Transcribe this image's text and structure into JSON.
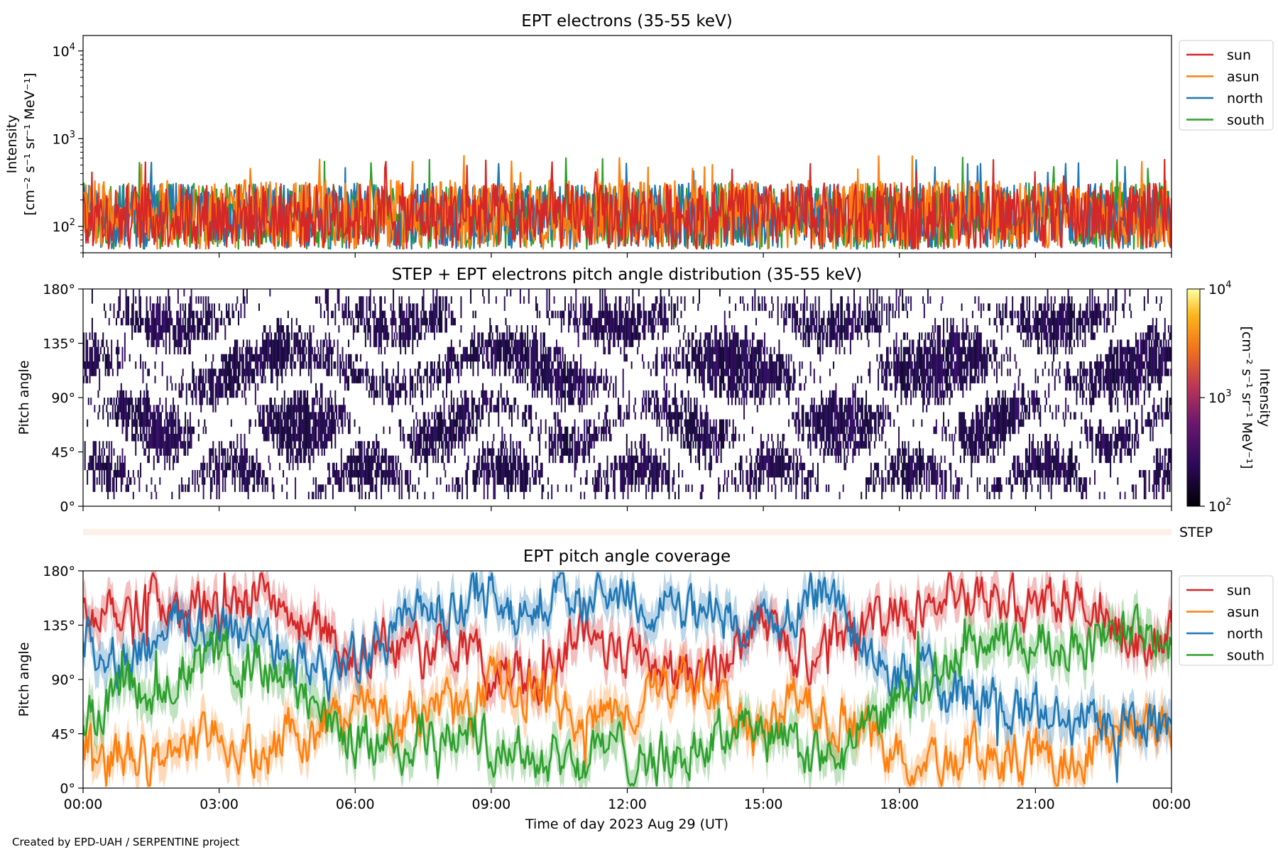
{
  "figure": {
    "footer": "Created by EPD-UAH / SERPENTINE project",
    "xlabel": "Time of day 2023 Aug 29 (UT)",
    "xticks": [
      "00:00",
      "03:00",
      "06:00",
      "09:00",
      "12:00",
      "15:00",
      "18:00",
      "21:00",
      "00:00"
    ]
  },
  "chart_data": [
    {
      "type": "line",
      "title": "EPT electrons (35-55 keV)",
      "ylabel": [
        "Intensity",
        "[cm⁻² s⁻¹ sr⁻¹ MeV⁻¹]"
      ],
      "yscale": "log",
      "ylim": [
        50,
        15000
      ],
      "yticks": [
        {
          "base": "10",
          "exp": "2",
          "value": 100
        },
        {
          "base": "10",
          "exp": "3",
          "value": 1000
        },
        {
          "base": "10",
          "exp": "4",
          "value": 10000
        }
      ],
      "x": "00:00 to 24:00 UT, 2023-08-29 (noisy high-cadence series)",
      "typical_range": [
        50,
        400
      ],
      "legend_position": "upper right outside",
      "series": [
        {
          "name": "sun",
          "color": "#d62728",
          "mean": 120,
          "max": 580
        },
        {
          "name": "asun",
          "color": "#ff7f0e",
          "mean": 130,
          "max": 650
        },
        {
          "name": "north",
          "color": "#1f77b4",
          "mean": 120,
          "max": 600
        },
        {
          "name": "south",
          "color": "#2ca02c",
          "mean": 120,
          "max": 730
        }
      ],
      "draw_order": [
        "south",
        "north",
        "asun",
        "sun"
      ]
    },
    {
      "type": "heatmap",
      "title": "STEP + EPT electrons pitch angle distribution (35-55 keV)",
      "ylabel": "Pitch angle",
      "ylim": [
        0,
        180
      ],
      "yticks": [
        "0°",
        "45°",
        "90°",
        "135°",
        "180°"
      ],
      "colorbar": {
        "label": [
          "Intensity",
          "[cm⁻² s⁻¹ sr⁻¹ MeV⁻¹]"
        ],
        "scale": "log",
        "range": [
          100,
          10000
        ],
        "ticks": [
          {
            "base": "10",
            "exp": "2"
          },
          {
            "base": "10",
            "exp": "3"
          },
          {
            "base": "10",
            "exp": "4"
          }
        ],
        "colormap": "inferno"
      },
      "dominant_value": "~1e2 (dark purple) with gaps",
      "step_label": "STEP"
    },
    {
      "type": "line",
      "title": "EPT pitch angle coverage",
      "ylabel": "Pitch angle",
      "ylim": [
        0,
        180
      ],
      "yticks": [
        "0°",
        "45°",
        "90°",
        "135°",
        "180°"
      ],
      "legend_position": "upper right outside",
      "hours_axis": [
        0,
        3,
        6,
        9,
        12,
        15,
        18,
        21,
        24
      ],
      "series": [
        {
          "name": "sun",
          "color": "#d62728",
          "keys": [
            [
              0,
              140
            ],
            [
              0.5,
              160
            ],
            [
              1,
              150
            ],
            [
              1.5,
              165
            ],
            [
              2,
              140
            ],
            [
              2.5,
              150
            ],
            [
              3,
              130
            ],
            [
              3.5,
              150
            ],
            [
              4,
              160
            ],
            [
              4.5,
              135
            ],
            [
              5,
              140
            ],
            [
              5.5,
              120
            ],
            [
              6,
              110
            ],
            [
              6.5,
              120
            ],
            [
              7,
              125
            ],
            [
              7.5,
              110
            ],
            [
              8,
              120
            ],
            [
              8.5,
              110
            ],
            [
              9,
              95
            ],
            [
              9.5,
              100
            ],
            [
              10,
              90
            ],
            [
              10.5,
              110
            ],
            [
              11,
              130
            ],
            [
              11.5,
              120
            ],
            [
              12,
              115
            ],
            [
              12.5,
              105
            ],
            [
              13,
              95
            ],
            [
              13.5,
              90
            ],
            [
              14,
              105
            ],
            [
              14.5,
              125
            ],
            [
              15,
              140
            ],
            [
              15.5,
              115
            ],
            [
              16,
              110
            ],
            [
              16.5,
              125
            ],
            [
              17,
              120
            ],
            [
              17.5,
              140
            ],
            [
              18,
              155
            ],
            [
              18.5,
              150
            ],
            [
              19,
              160
            ],
            [
              19.5,
              150
            ],
            [
              20,
              155
            ],
            [
              20.5,
              155
            ],
            [
              21,
              150
            ],
            [
              21.5,
              160
            ],
            [
              22,
              150
            ],
            [
              22.5,
              130
            ],
            [
              23,
              130
            ],
            [
              23.5,
              120
            ],
            [
              24,
              135
            ]
          ]
        },
        {
          "name": "asun",
          "color": "#ff7f0e",
          "keys": [
            [
              0,
              40
            ],
            [
              0.5,
              20
            ],
            [
              1,
              30
            ],
            [
              1.5,
              15
            ],
            [
              2,
              40
            ],
            [
              2.5,
              30
            ],
            [
              3,
              50
            ],
            [
              3.5,
              30
            ],
            [
              4,
              20
            ],
            [
              4.5,
              45
            ],
            [
              5,
              40
            ],
            [
              5.5,
              60
            ],
            [
              6,
              70
            ],
            [
              6.5,
              60
            ],
            [
              7,
              55
            ],
            [
              7.5,
              70
            ],
            [
              8,
              60
            ],
            [
              8.5,
              70
            ],
            [
              9,
              85
            ],
            [
              9.5,
              80
            ],
            [
              10,
              90
            ],
            [
              10.5,
              70
            ],
            [
              11,
              50
            ],
            [
              11.5,
              60
            ],
            [
              12,
              65
            ],
            [
              12.5,
              75
            ],
            [
              13,
              85
            ],
            [
              13.5,
              90
            ],
            [
              14,
              75
            ],
            [
              14.5,
              55
            ],
            [
              15,
              40
            ],
            [
              15.5,
              65
            ],
            [
              16,
              70
            ],
            [
              16.5,
              55
            ],
            [
              17,
              60
            ],
            [
              17.5,
              40
            ],
            [
              18,
              25
            ],
            [
              18.5,
              30
            ],
            [
              19,
              20
            ],
            [
              19.5,
              30
            ],
            [
              20,
              25
            ],
            [
              20.5,
              25
            ],
            [
              21,
              30
            ],
            [
              21.5,
              20
            ],
            [
              22,
              30
            ],
            [
              22.5,
              50
            ],
            [
              23,
              50
            ],
            [
              23.5,
              60
            ],
            [
              24,
              45
            ]
          ]
        },
        {
          "name": "north",
          "color": "#1f77b4",
          "keys": [
            [
              0,
              130
            ],
            [
              0.5,
              115
            ],
            [
              1,
              100
            ],
            [
              1.5,
              120
            ],
            [
              2,
              135
            ],
            [
              2.5,
              130
            ],
            [
              3,
              140
            ],
            [
              3.5,
              125
            ],
            [
              4,
              130
            ],
            [
              4.5,
              115
            ],
            [
              5,
              100
            ],
            [
              5.5,
              95
            ],
            [
              6,
              110
            ],
            [
              6.5,
              120
            ],
            [
              7,
              135
            ],
            [
              7.5,
              150
            ],
            [
              8,
              140
            ],
            [
              8.5,
              155
            ],
            [
              9,
              165
            ],
            [
              9.5,
              150
            ],
            [
              10,
              155
            ],
            [
              10.5,
              160
            ],
            [
              11,
              150
            ],
            [
              11.5,
              160
            ],
            [
              12,
              165
            ],
            [
              12.5,
              150
            ],
            [
              13,
              145
            ],
            [
              13.5,
              140
            ],
            [
              14,
              150
            ],
            [
              14.5,
              130
            ],
            [
              15,
              125
            ],
            [
              15.5,
              150
            ],
            [
              16,
              160
            ],
            [
              16.5,
              165
            ],
            [
              17,
              130
            ],
            [
              17.5,
              110
            ],
            [
              18,
              90
            ],
            [
              18.5,
              100
            ],
            [
              19,
              80
            ],
            [
              19.5,
              70
            ],
            [
              20,
              75
            ],
            [
              20.5,
              60
            ],
            [
              21,
              65
            ],
            [
              21.5,
              55
            ],
            [
              22,
              60
            ],
            [
              22.5,
              55
            ],
            [
              23,
              50
            ],
            [
              23.5,
              55
            ],
            [
              24,
              60
            ]
          ]
        },
        {
          "name": "south",
          "color": "#2ca02c",
          "keys": [
            [
              0,
              60
            ],
            [
              0.5,
              70
            ],
            [
              1,
              80
            ],
            [
              1.5,
              75
            ],
            [
              2,
              95
            ],
            [
              2.5,
              100
            ],
            [
              3,
              110
            ],
            [
              3.5,
              105
            ],
            [
              4,
              100
            ],
            [
              4.5,
              90
            ],
            [
              5,
              70
            ],
            [
              5.5,
              50
            ],
            [
              6,
              40
            ],
            [
              6.5,
              40
            ],
            [
              7,
              30
            ],
            [
              7.5,
              45
            ],
            [
              8,
              40
            ],
            [
              8.5,
              50
            ],
            [
              9,
              40
            ],
            [
              9.5,
              35
            ],
            [
              10,
              25
            ],
            [
              10.5,
              30
            ],
            [
              11,
              20
            ],
            [
              11.5,
              35
            ],
            [
              12,
              30
            ],
            [
              12.5,
              25
            ],
            [
              13,
              20
            ],
            [
              13.5,
              35
            ],
            [
              14,
              40
            ],
            [
              14.5,
              60
            ],
            [
              15,
              45
            ],
            [
              15.5,
              35
            ],
            [
              16,
              25
            ],
            [
              16.5,
              20
            ],
            [
              17,
              35
            ],
            [
              17.5,
              55
            ],
            [
              18,
              75
            ],
            [
              18.5,
              80
            ],
            [
              19,
              100
            ],
            [
              19.5,
              115
            ],
            [
              20,
              120
            ],
            [
              20.5,
              110
            ],
            [
              21,
              120
            ],
            [
              21.5,
              125
            ],
            [
              22,
              115
            ],
            [
              22.5,
              130
            ],
            [
              23,
              135
            ],
            [
              23.5,
              125
            ],
            [
              24,
              115
            ]
          ]
        }
      ]
    }
  ]
}
